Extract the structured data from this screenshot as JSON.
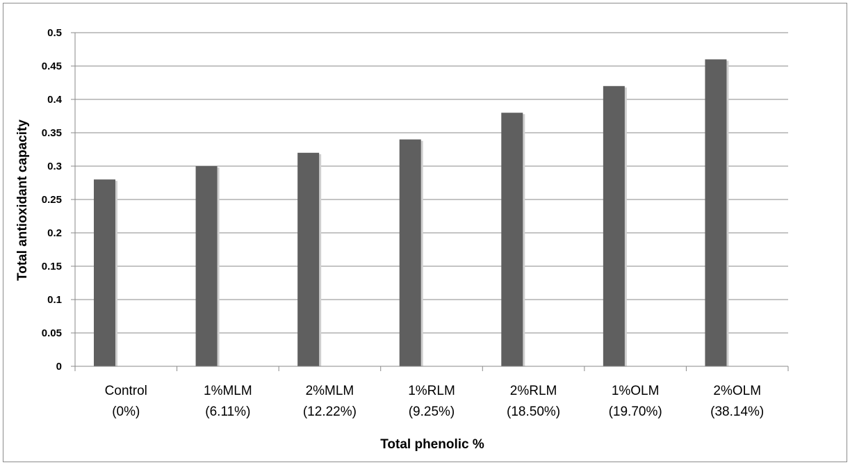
{
  "chart_data": {
    "type": "bar",
    "title": "",
    "xlabel": "Total phenolic %",
    "ylabel": "Total antioxidant capacity",
    "ylim": [
      0,
      0.5
    ],
    "yticks": [
      "0",
      "0.05",
      "0.1",
      "0.15",
      "0.2",
      "0.25",
      "0.3",
      "0.35",
      "0.4",
      "0.45",
      "0.5"
    ],
    "grid": true,
    "legend": "none",
    "categories": [
      [
        "Control",
        "(0%)"
      ],
      [
        "1%MLM",
        "(6.11%)"
      ],
      [
        "2%MLM",
        "(12.22%)"
      ],
      [
        "1%RLM",
        "(9.25%)"
      ],
      [
        "2%RLM",
        "(18.50%)"
      ],
      [
        "1%OLM",
        "(19.70%)"
      ],
      [
        "2%OLM",
        "(38.14%)"
      ]
    ],
    "values": [
      0.28,
      0.3,
      0.32,
      0.34,
      0.38,
      0.42,
      0.46
    ],
    "bar_color": "#5f5f5f"
  }
}
